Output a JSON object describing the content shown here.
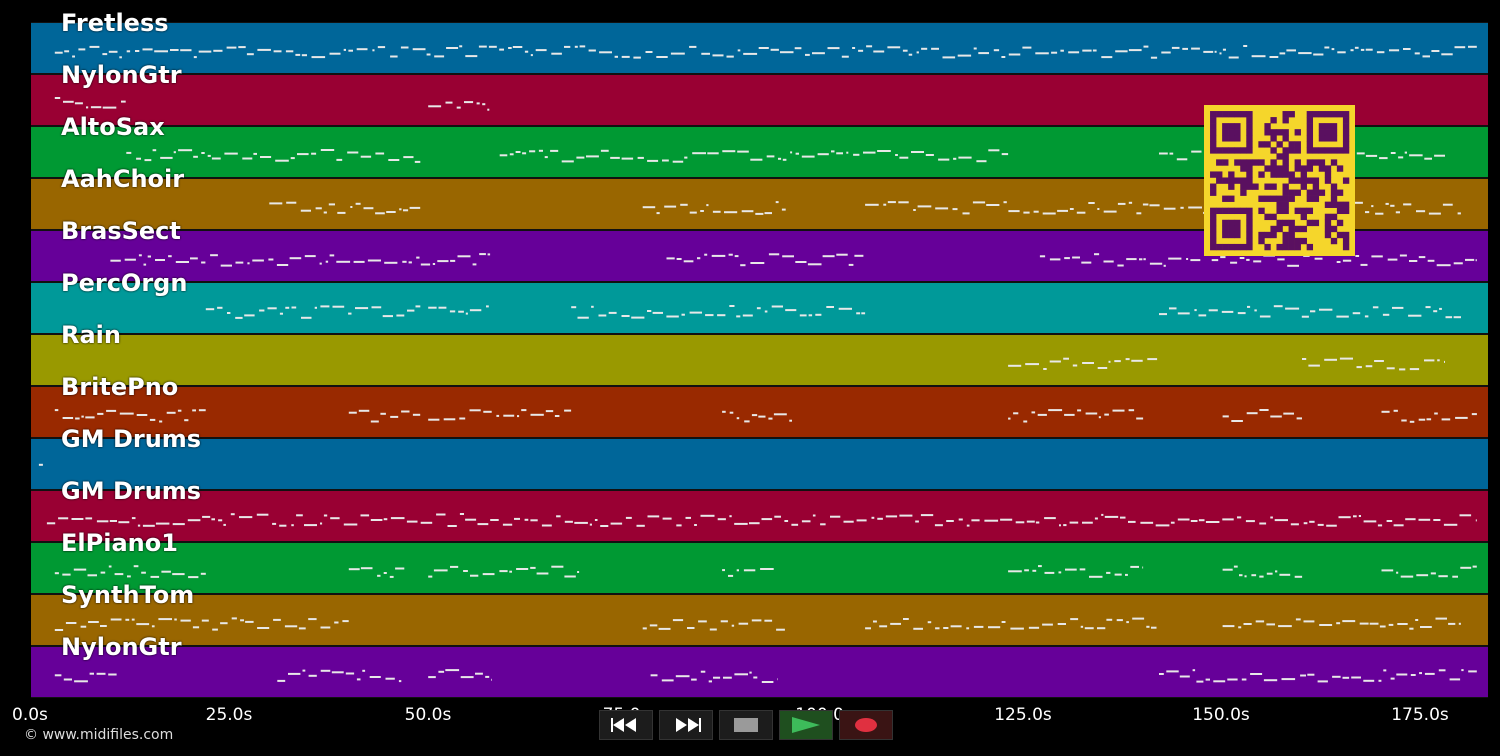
{
  "lanes": [
    {
      "label": "Fretless",
      "color": "#006699"
    },
    {
      "label": "NylonGtr",
      "color": "#990033"
    },
    {
      "label": "AltoSax",
      "color": "#009933"
    },
    {
      "label": "AahChoir",
      "color": "#996600"
    },
    {
      "label": "BrasSect",
      "color": "#660099"
    },
    {
      "label": "PercOrgn",
      "color": "#009999"
    },
    {
      "label": "Rain",
      "color": "#999900"
    },
    {
      "label": "BritePno",
      "color": "#992900"
    },
    {
      "label": "GM Drums",
      "color": "#006699"
    },
    {
      "label": "GM Drums",
      "color": "#990033"
    },
    {
      "label": "ElPiano1",
      "color": "#009933"
    },
    {
      "label": "SynthTom",
      "color": "#996600"
    },
    {
      "label": "NylonGtr",
      "color": "#660099"
    }
  ],
  "axis": {
    "ticks": [
      {
        "label": "0.0s",
        "t": 0
      },
      {
        "label": "25.0s",
        "t": 25
      },
      {
        "label": "50.0s",
        "t": 50
      },
      {
        "label": "75.0s",
        "t": 75
      },
      {
        "label": "100.0s",
        "t": 100
      },
      {
        "label": "125.0s",
        "t": 125
      },
      {
        "label": "150.0s",
        "t": 150
      },
      {
        "label": "175.0s",
        "t": 175
      }
    ],
    "max_seconds": 183.5
  },
  "note_regions": [
    [
      [
        3,
        182
      ]
    ],
    [
      [
        3,
        12
      ],
      [
        50,
        58
      ]
    ],
    [
      [
        12,
        49
      ],
      [
        59,
        123
      ],
      [
        142,
        178
      ]
    ],
    [
      [
        30,
        49
      ],
      [
        77,
        95
      ],
      [
        105,
        180
      ]
    ],
    [
      [
        10,
        58
      ],
      [
        80,
        105
      ],
      [
        127,
        182
      ]
    ],
    [
      [
        22,
        49
      ],
      [
        50,
        58
      ],
      [
        68,
        105
      ],
      [
        142,
        180
      ]
    ],
    [
      [
        123,
        142
      ],
      [
        160,
        178
      ]
    ],
    [
      [
        3,
        22
      ],
      [
        40,
        49
      ],
      [
        50,
        68
      ],
      [
        87,
        96
      ],
      [
        123,
        140
      ],
      [
        150,
        160
      ],
      [
        170,
        182
      ]
    ],
    [
      [
        1,
        1.5
      ]
    ],
    [
      [
        2,
        182
      ]
    ],
    [
      [
        3,
        22
      ],
      [
        40,
        47
      ],
      [
        50,
        69
      ],
      [
        87,
        94
      ],
      [
        123,
        140
      ],
      [
        150,
        160
      ],
      [
        170,
        182
      ]
    ],
    [
      [
        3,
        40
      ],
      [
        77,
        95
      ],
      [
        105,
        142
      ],
      [
        150,
        180
      ]
    ],
    [
      [
        3,
        11
      ],
      [
        31,
        47
      ],
      [
        50,
        58
      ],
      [
        78,
        94
      ],
      [
        142,
        182
      ]
    ]
  ],
  "credit": "© www.midifiles.com",
  "transport": [
    {
      "name": "rewind-button",
      "icon": "rewind-icon"
    },
    {
      "name": "fast-forward-button",
      "icon": "fast-forward-icon"
    },
    {
      "name": "stop-button",
      "icon": "stop-icon"
    },
    {
      "name": "play-button",
      "icon": "play-icon"
    },
    {
      "name": "record-button",
      "icon": "record-icon"
    }
  ],
  "colors": {
    "background": "#000000",
    "play": "#3dbb5a",
    "record": "#e03040",
    "qr": "#f5d62b",
    "qr_dark": "#5a1060"
  }
}
